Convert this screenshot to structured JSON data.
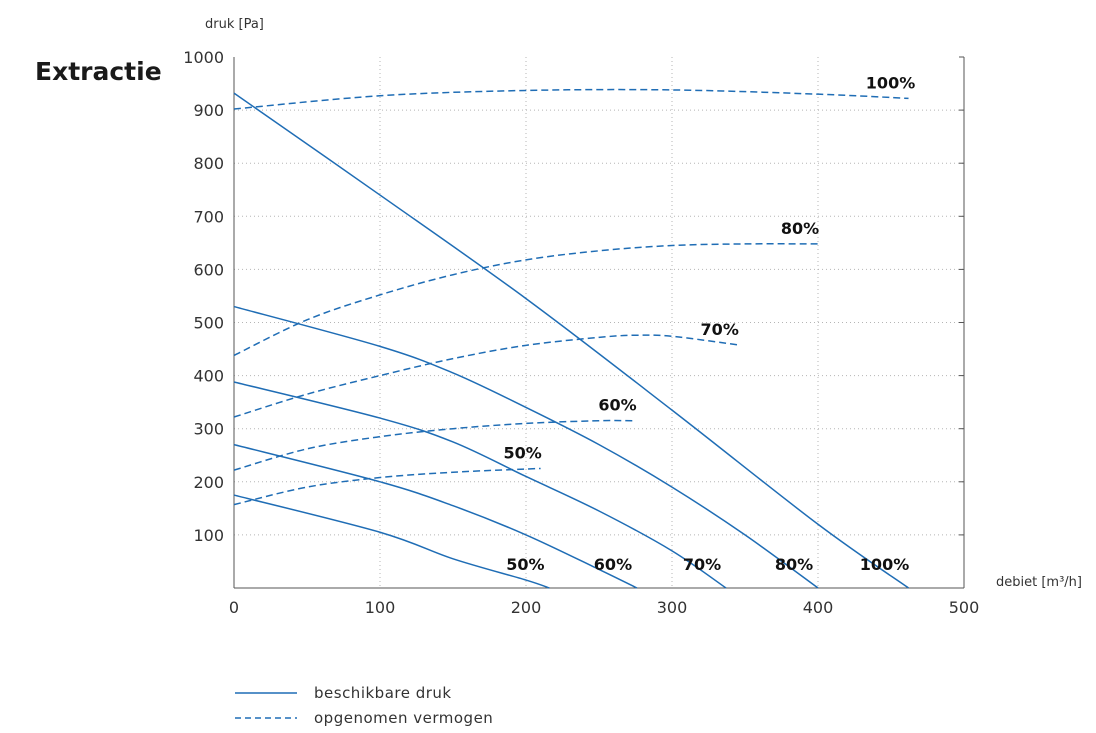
{
  "chart_data": {
    "type": "line",
    "title": "Extractie",
    "ylabel": "druk [Pa]",
    "xlabel": "debiet [m³/h]",
    "xlim": [
      0,
      500
    ],
    "ylim": [
      0,
      1000
    ],
    "xticks": [
      0,
      100,
      200,
      300,
      400,
      500
    ],
    "yticks": [
      100,
      200,
      300,
      400,
      500,
      600,
      700,
      800,
      900,
      1000
    ],
    "grid": true,
    "colors": {
      "line": "#1f6db5",
      "grid": "#b5b5b5",
      "axis": "#555555"
    },
    "legend": {
      "placement": "bottom-left",
      "entries": [
        {
          "label": "beschikbare druk",
          "style": "solid"
        },
        {
          "label": "opgenomen vermogen",
          "style": "dashed"
        }
      ]
    },
    "series": [
      {
        "group": "beschikbare druk",
        "style": "solid",
        "label": "50%",
        "x": [
          0,
          100,
          150,
          200,
          216
        ],
        "y": [
          175,
          105,
          55,
          15,
          0
        ]
      },
      {
        "group": "beschikbare druk",
        "style": "solid",
        "label": "60%",
        "x": [
          0,
          100,
          150,
          200,
          250,
          276
        ],
        "y": [
          270,
          200,
          155,
          100,
          35,
          0
        ]
      },
      {
        "group": "beschikbare druk",
        "style": "solid",
        "label": "70%",
        "x": [
          0,
          100,
          150,
          200,
          250,
          300,
          337
        ],
        "y": [
          388,
          320,
          275,
          210,
          145,
          70,
          0
        ]
      },
      {
        "group": "beschikbare druk",
        "style": "solid",
        "label": "80%",
        "x": [
          0,
          100,
          150,
          200,
          250,
          300,
          350,
          400
        ],
        "y": [
          530,
          455,
          405,
          340,
          270,
          190,
          100,
          0
        ]
      },
      {
        "group": "beschikbare druk",
        "style": "solid",
        "label": "100%",
        "x": [
          0,
          100,
          200,
          300,
          400,
          462
        ],
        "y": [
          932,
          740,
          545,
          335,
          120,
          0
        ]
      },
      {
        "group": "opgenomen vermogen",
        "style": "dashed",
        "label": "50%",
        "x": [
          0,
          50,
          100,
          150,
          200,
          210
        ],
        "y": [
          157,
          190,
          208,
          218,
          224,
          225
        ]
      },
      {
        "group": "opgenomen vermogen",
        "style": "dashed",
        "label": "60%",
        "x": [
          0,
          50,
          100,
          150,
          200,
          250,
          275
        ],
        "y": [
          222,
          262,
          285,
          300,
          310,
          315,
          315
        ]
      },
      {
        "group": "opgenomen vermogen",
        "style": "dashed",
        "label": "70%",
        "x": [
          0,
          50,
          100,
          150,
          200,
          250,
          275,
          300,
          345
        ],
        "y": [
          322,
          365,
          400,
          432,
          457,
          472,
          476,
          474,
          458
        ]
      },
      {
        "group": "opgenomen vermogen",
        "style": "dashed",
        "label": "80%",
        "x": [
          0,
          50,
          100,
          150,
          200,
          250,
          300,
          350,
          400
        ],
        "y": [
          438,
          505,
          552,
          590,
          618,
          635,
          645,
          648,
          648
        ]
      },
      {
        "group": "opgenomen vermogen",
        "style": "dashed",
        "label": "100%",
        "x": [
          0,
          100,
          200,
          300,
          400,
          462
        ],
        "y": [
          902,
          927,
          937,
          938,
          930,
          922
        ]
      }
    ]
  }
}
